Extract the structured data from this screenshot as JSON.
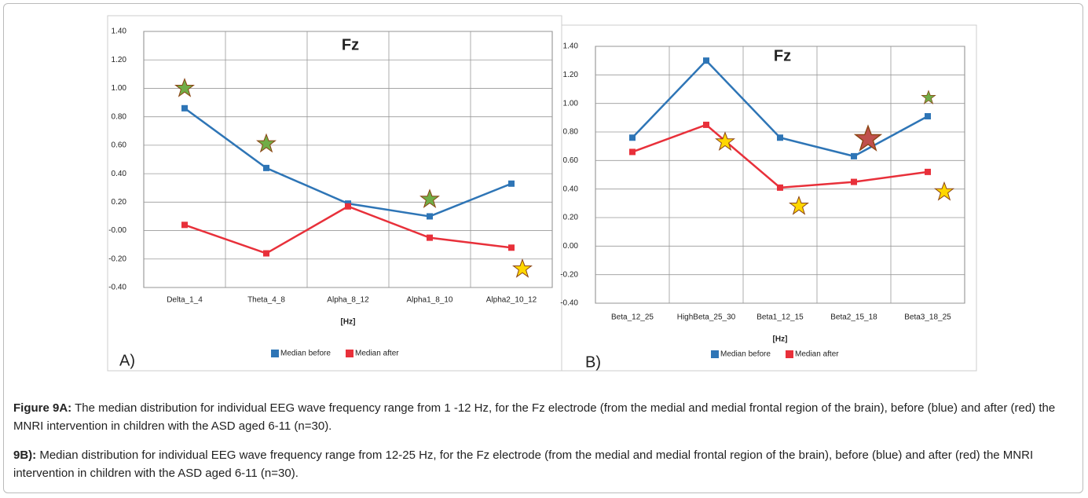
{
  "chart_data": [
    {
      "type": "line",
      "title": "Fz",
      "x_label": "[Hz]",
      "panel_label": "A)",
      "categories": [
        "Delta_1_4",
        "Theta_4_8",
        "Alpha_8_12",
        "Alpha1_8_10",
        "Alpha2_10_12"
      ],
      "series": [
        {
          "name": "Median before",
          "color": "#2e75b6",
          "values": [
            0.86,
            0.44,
            0.19,
            0.1,
            0.33
          ]
        },
        {
          "name": "Median after",
          "color": "#e8303a",
          "values": [
            0.04,
            -0.16,
            0.17,
            -0.05,
            -0.12
          ]
        }
      ],
      "ylim": [
        -0.4,
        1.4
      ],
      "yticks": [
        {
          "value": 1.4,
          "label": "1.40"
        },
        {
          "value": 1.2,
          "label": "1.20"
        },
        {
          "value": 1.0,
          "label": "1.00"
        },
        {
          "value": 0.8,
          "label": "0.80"
        },
        {
          "value": 0.6,
          "label": "0.60"
        },
        {
          "value": 0.4,
          "label": "0.40"
        },
        {
          "value": 0.2,
          "label": "0.20"
        },
        {
          "value": 0,
          "label": "-0.00"
        },
        {
          "value": -0.2,
          "label": "-0.20"
        },
        {
          "value": -0.4,
          "label": "-0.40"
        }
      ],
      "grid": true
    },
    {
      "type": "line",
      "title": "Fz",
      "x_label": "[Hz]",
      "panel_label": "B)",
      "categories": [
        "Beta_12_25",
        "HighBeta_25_30",
        "Beta1_12_15",
        "Beta2_15_18",
        "Beta3_18_25"
      ],
      "series": [
        {
          "name": "Median before",
          "color": "#2e75b6",
          "values": [
            0.76,
            1.3,
            0.76,
            0.63,
            0.91
          ]
        },
        {
          "name": "Median after",
          "color": "#e8303a",
          "values": [
            0.66,
            0.85,
            0.41,
            0.45,
            0.52
          ]
        }
      ],
      "ylim": [
        -0.4,
        1.4
      ],
      "yticks": [
        {
          "value": 1.4,
          "label": "1.40"
        },
        {
          "value": 1.2,
          "label": "1.20"
        },
        {
          "value": 1.0,
          "label": "1.00"
        },
        {
          "value": 0.8,
          "label": "0.80"
        },
        {
          "value": 0.6,
          "label": "0.60"
        },
        {
          "value": 0.4,
          "label": "0.40"
        },
        {
          "value": 0.2,
          "label": "0.20"
        },
        {
          "value": 0,
          "label": "0.00"
        },
        {
          "value": -0.2,
          "label": "-0.20"
        },
        {
          "value": -0.4,
          "label": "-0.40"
        }
      ],
      "grid": true
    }
  ],
  "caption": [
    {
      "label": "Figure 9A:",
      "text": " The median distribution for individual EEG wave frequency range from 1 -12 Hz, for the Fz electrode (from the medial and medial frontal region of the brain), before (blue) and after (red) the MNRI intervention in children with the ASD aged 6-11 (n=30)."
    },
    {
      "label": "9B):",
      "text": " Median distribution for individual EEG wave frequency range from 12-25 Hz, for the Fz electrode (from the medial and medial frontal region of the brain), before (blue) and after (red) the MNRI intervention in children with the ASD aged 6-11 (n=30)."
    }
  ]
}
